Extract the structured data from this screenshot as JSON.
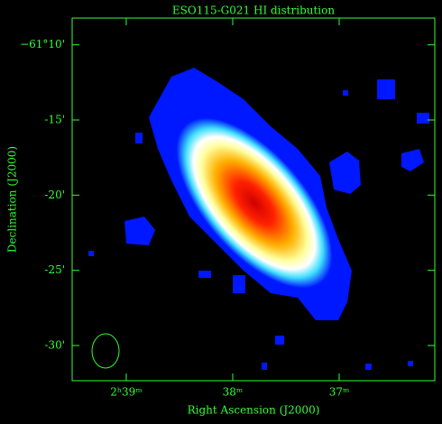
{
  "chart_data": {
    "type": "image",
    "title": "ESO115-G021  HI distribution",
    "xlabel": "Right Ascension (J2000)",
    "ylabel": "Declination (J2000)",
    "xlim": [
      39.508,
      36.102
    ],
    "xticks": [
      {
        "value": 39,
        "label": "2ʰ39ᵐ"
      },
      {
        "value": 38,
        "label": "38ᵐ"
      },
      {
        "value": 37,
        "label": "37ᵐ"
      }
    ],
    "ylim": [
      -61.539,
      -61.137
    ],
    "yticks": [
      {
        "value": -61.1667,
        "label": "−61°10'"
      },
      {
        "value": -61.25,
        "label": "-15'"
      },
      {
        "value": -61.3333,
        "label": "-20'"
      },
      {
        "value": -61.4167,
        "label": "-25'"
      },
      {
        "value": -61.5,
        "label": "-30'"
      }
    ],
    "color": "#33ff33"
  }
}
